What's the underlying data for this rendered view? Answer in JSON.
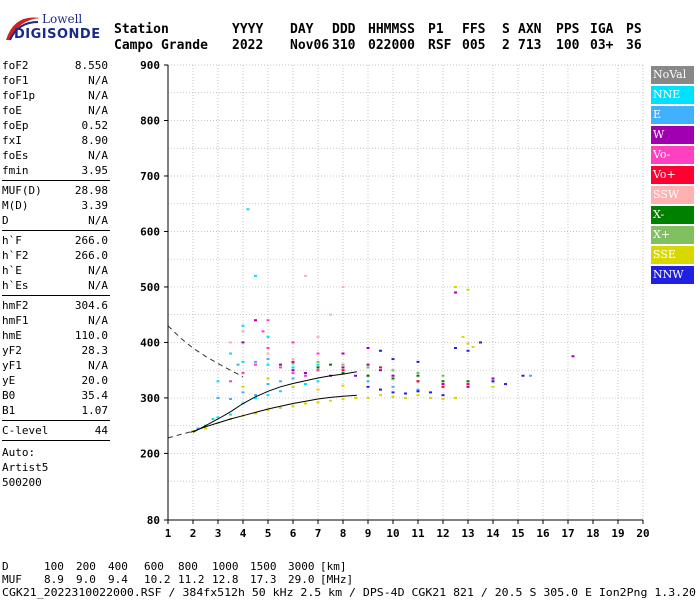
{
  "logo": {
    "line1": "Lowell",
    "line2": "DIGISONDE"
  },
  "header": {
    "labels": [
      "Station",
      "YYYY",
      "DAY",
      "DDD",
      "HHMMSS",
      "P1",
      "FFS",
      "S",
      "AXN",
      "PPS",
      "IGA",
      "PS"
    ],
    "values": [
      "Campo Grande",
      "2022",
      "Nov06",
      "310",
      "022000",
      "RSF",
      "005",
      "2",
      "713",
      "100",
      "03+",
      "36"
    ]
  },
  "params": {
    "group1": [
      {
        "k": "foF2",
        "v": "8.550"
      },
      {
        "k": "foF1",
        "v": "N/A"
      },
      {
        "k": "foF1p",
        "v": "N/A"
      },
      {
        "k": "foE",
        "v": "N/A"
      },
      {
        "k": "foEp",
        "v": "0.52"
      },
      {
        "k": "fxI",
        "v": "8.90"
      },
      {
        "k": "foEs",
        "v": "N/A"
      },
      {
        "k": "fmin",
        "v": "3.95"
      }
    ],
    "group2": [
      {
        "k": "MUF(D)",
        "v": "28.98"
      },
      {
        "k": "M(D)",
        "v": "3.39"
      },
      {
        "k": "D",
        "v": "N/A"
      }
    ],
    "group3": [
      {
        "k": "h`F",
        "v": "266.0"
      },
      {
        "k": "h`F2",
        "v": "266.0"
      },
      {
        "k": "h`E",
        "v": "N/A"
      },
      {
        "k": "h`Es",
        "v": "N/A"
      }
    ],
    "group4": [
      {
        "k": "hmF2",
        "v": "304.6"
      },
      {
        "k": "hmF1",
        "v": "N/A"
      },
      {
        "k": "hmE",
        "v": "110.0"
      },
      {
        "k": "yF2",
        "v": "28.3"
      },
      {
        "k": "yF1",
        "v": "N/A"
      },
      {
        "k": "yE",
        "v": "20.0"
      },
      {
        "k": "B0",
        "v": "35.4"
      },
      {
        "k": "B1",
        "v": "1.07"
      }
    ],
    "clevel": {
      "k": "C-level",
      "v": "44"
    },
    "auto_lines": [
      "Auto:",
      "Artist5",
      "500200"
    ]
  },
  "legend": [
    {
      "label": "NoVal",
      "color": "#888888"
    },
    {
      "label": "NNE",
      "color": "#00e0ff"
    },
    {
      "label": "E",
      "color": "#40b0ff"
    },
    {
      "label": "W",
      "color": "#a000b0"
    },
    {
      "label": "Vo-",
      "color": "#ff40c0"
    },
    {
      "label": "Vo+",
      "color": "#ff0030"
    },
    {
      "label": "SSW",
      "color": "#ffb0b0"
    },
    {
      "label": "X-",
      "color": "#008000"
    },
    {
      "label": "X+",
      "color": "#80c060"
    },
    {
      "label": "SSE",
      "color": "#d8d800"
    },
    {
      "label": "NNW",
      "color": "#2020e0"
    }
  ],
  "chart_data": {
    "type": "scatter",
    "x_ticks": [
      1,
      2,
      3,
      4,
      5,
      6,
      7,
      8,
      9,
      10,
      11,
      12,
      13,
      14,
      15,
      16,
      17,
      18,
      19,
      20
    ],
    "y_ticks": [
      80,
      200,
      300,
      400,
      500,
      600,
      700,
      800,
      900
    ],
    "xlim": [
      1,
      20
    ],
    "ylim": [
      80,
      900
    ],
    "grid": true,
    "legend_position": "right",
    "series": [
      {
        "name": "NNE",
        "color": "#00e0ff",
        "points": [
          [
            2.5,
            250
          ],
          [
            3,
            265
          ],
          [
            3.5,
            270
          ],
          [
            4,
            290
          ],
          [
            4.5,
            300
          ],
          [
            5,
            305
          ],
          [
            5.5,
            312
          ],
          [
            6,
            320
          ],
          [
            6.5,
            325
          ],
          [
            7,
            330
          ],
          [
            4,
            365
          ],
          [
            5,
            360
          ],
          [
            6,
            362
          ],
          [
            3,
            330
          ],
          [
            4,
            430
          ],
          [
            3.5,
            380
          ],
          [
            5,
            410
          ],
          [
            4.2,
            640
          ],
          [
            4.5,
            520
          ],
          [
            6,
            355
          ],
          [
            7,
            360
          ],
          [
            2.8,
            262
          ]
        ]
      },
      {
        "name": "E",
        "color": "#40b0ff",
        "points": [
          [
            2.2,
            245
          ],
          [
            3,
            300
          ],
          [
            3.5,
            298
          ],
          [
            4,
            310
          ],
          [
            4.5,
            305
          ],
          [
            5,
            325
          ],
          [
            5.5,
            330
          ],
          [
            6,
            335
          ],
          [
            3.8,
            360
          ],
          [
            4.5,
            365
          ],
          [
            5,
            370
          ],
          [
            6.5,
            340
          ],
          [
            9,
            330
          ],
          [
            10,
            320
          ],
          [
            11,
            315
          ],
          [
            12,
            320
          ],
          [
            14,
            330
          ],
          [
            15.5,
            340
          ]
        ]
      },
      {
        "name": "W",
        "color": "#a000b0",
        "points": [
          [
            4,
            400
          ],
          [
            4.5,
            440
          ],
          [
            5,
            380
          ],
          [
            5.5,
            360
          ],
          [
            6,
            350
          ],
          [
            6.5,
            345
          ],
          [
            7,
            350
          ],
          [
            7.5,
            340
          ],
          [
            8,
            355
          ],
          [
            8.5,
            340
          ],
          [
            9,
            360
          ],
          [
            9.5,
            350
          ],
          [
            10,
            340
          ],
          [
            11,
            330
          ],
          [
            12,
            325
          ],
          [
            12.5,
            490
          ],
          [
            13,
            320
          ],
          [
            14,
            335
          ],
          [
            17.2,
            375
          ],
          [
            8,
            380
          ],
          [
            9,
            390
          ]
        ]
      },
      {
        "name": "Vo-",
        "color": "#ff40c0",
        "points": [
          [
            3.5,
            330
          ],
          [
            4,
            345
          ],
          [
            4.5,
            360
          ],
          [
            5,
            390
          ],
          [
            5.5,
            355
          ],
          [
            6,
            345
          ],
          [
            6.5,
            340
          ],
          [
            7,
            350
          ],
          [
            4.8,
            420
          ],
          [
            5,
            440
          ],
          [
            6,
            400
          ],
          [
            7,
            380
          ]
        ]
      },
      {
        "name": "Vo+",
        "color": "#ff0030",
        "points": [
          [
            6,
            365
          ],
          [
            7,
            355
          ],
          [
            8,
            350
          ],
          [
            9,
            340
          ],
          [
            10,
            335
          ],
          [
            11,
            330
          ],
          [
            12,
            320
          ],
          [
            13,
            325
          ],
          [
            9.5,
            355
          ]
        ]
      },
      {
        "name": "SSW",
        "color": "#ffb0b0",
        "points": [
          [
            3.5,
            400
          ],
          [
            4,
            420
          ],
          [
            5,
            380
          ],
          [
            6,
            370
          ],
          [
            7,
            410
          ],
          [
            8,
            500
          ],
          [
            7.5,
            450
          ],
          [
            6.5,
            520
          ]
        ]
      },
      {
        "name": "X-",
        "color": "#008000",
        "points": [
          [
            7,
            355
          ],
          [
            8,
            345
          ],
          [
            9,
            340
          ],
          [
            10,
            335
          ],
          [
            11,
            340
          ],
          [
            12,
            330
          ],
          [
            13,
            330
          ],
          [
            7.5,
            360
          ]
        ]
      },
      {
        "name": "X+",
        "color": "#80c060",
        "points": [
          [
            7,
            365
          ],
          [
            8,
            360
          ],
          [
            9,
            355
          ],
          [
            10,
            350
          ],
          [
            11,
            345
          ],
          [
            12,
            340
          ]
        ]
      },
      {
        "name": "SSE",
        "color": "#d8d800",
        "points": [
          [
            2,
            240
          ],
          [
            2.5,
            245
          ],
          [
            3,
            255
          ],
          [
            3.5,
            262
          ],
          [
            4,
            268
          ],
          [
            4.5,
            272
          ],
          [
            5,
            278
          ],
          [
            5.5,
            282
          ],
          [
            6,
            285
          ],
          [
            6.5,
            290
          ],
          [
            7,
            292
          ],
          [
            7.5,
            295
          ],
          [
            8,
            298
          ],
          [
            8.5,
            300
          ],
          [
            9,
            300
          ],
          [
            9.5,
            305
          ],
          [
            10,
            302
          ],
          [
            10.5,
            300
          ],
          [
            11,
            305
          ],
          [
            11.5,
            300
          ],
          [
            12,
            298
          ],
          [
            12.5,
            300
          ],
          [
            13,
            398
          ],
          [
            13.2,
            392
          ],
          [
            14,
            320
          ],
          [
            12.8,
            410
          ],
          [
            12.5,
            500
          ],
          [
            13,
            495
          ],
          [
            4,
            320
          ],
          [
            5,
            335
          ],
          [
            6,
            320
          ],
          [
            7,
            315
          ],
          [
            8,
            322
          ]
        ]
      },
      {
        "name": "NNW",
        "color": "#2020e0",
        "points": [
          [
            9,
            320
          ],
          [
            9.5,
            315
          ],
          [
            10,
            310
          ],
          [
            10.5,
            308
          ],
          [
            11,
            312
          ],
          [
            11.5,
            310
          ],
          [
            12,
            305
          ],
          [
            12.5,
            390
          ],
          [
            13,
            385
          ],
          [
            13.5,
            400
          ],
          [
            14,
            330
          ],
          [
            14.5,
            325
          ],
          [
            10,
            370
          ],
          [
            11,
            365
          ],
          [
            15.2,
            340
          ],
          [
            9.5,
            385
          ]
        ]
      }
    ],
    "model_profile": [
      [
        1.9,
        238
      ],
      [
        2.5,
        248
      ],
      [
        3,
        255
      ],
      [
        3.5,
        262
      ],
      [
        4,
        268
      ],
      [
        4.5,
        274
      ],
      [
        5,
        280
      ],
      [
        5.5,
        285
      ],
      [
        6,
        290
      ],
      [
        6.5,
        294
      ],
      [
        7,
        298
      ],
      [
        7.5,
        301
      ],
      [
        8,
        303
      ],
      [
        8.55,
        305
      ]
    ],
    "model_trace": [
      [
        2,
        238
      ],
      [
        2.5,
        250
      ],
      [
        3,
        262
      ],
      [
        3.5,
        275
      ],
      [
        4,
        290
      ],
      [
        4.5,
        302
      ],
      [
        5,
        312
      ],
      [
        5.5,
        320
      ],
      [
        6,
        326
      ],
      [
        6.5,
        331
      ],
      [
        7,
        336
      ],
      [
        7.5,
        340
      ],
      [
        8,
        343
      ],
      [
        8.55,
        347
      ]
    ],
    "dashed_upper": [
      [
        1,
        430
      ],
      [
        1.5,
        408
      ],
      [
        2,
        390
      ],
      [
        2.5,
        375
      ],
      [
        3,
        362
      ],
      [
        3.5,
        350
      ],
      [
        4,
        338
      ]
    ],
    "dashed_lower": [
      [
        1,
        228
      ],
      [
        1.5,
        234
      ],
      [
        2,
        240
      ]
    ]
  },
  "footer": {
    "row_d_label": "D",
    "row_d_values": [
      "100",
      "200",
      "400",
      "600",
      "800",
      "1000",
      "1500",
      "3000",
      "[km]"
    ],
    "row_muf_label": "MUF",
    "row_muf_values": [
      "8.9",
      "9.0",
      "9.4",
      "10.2",
      "11.2",
      "12.8",
      "17.3",
      "29.0",
      "[MHz]"
    ],
    "file_line": "CGK21_2022310022000.RSF / 384fx512h 50 kHz 2.5 km / DPS-4D CGK21 821 / 20.5 S 305.0 E Ion2Png 1.3.20"
  }
}
